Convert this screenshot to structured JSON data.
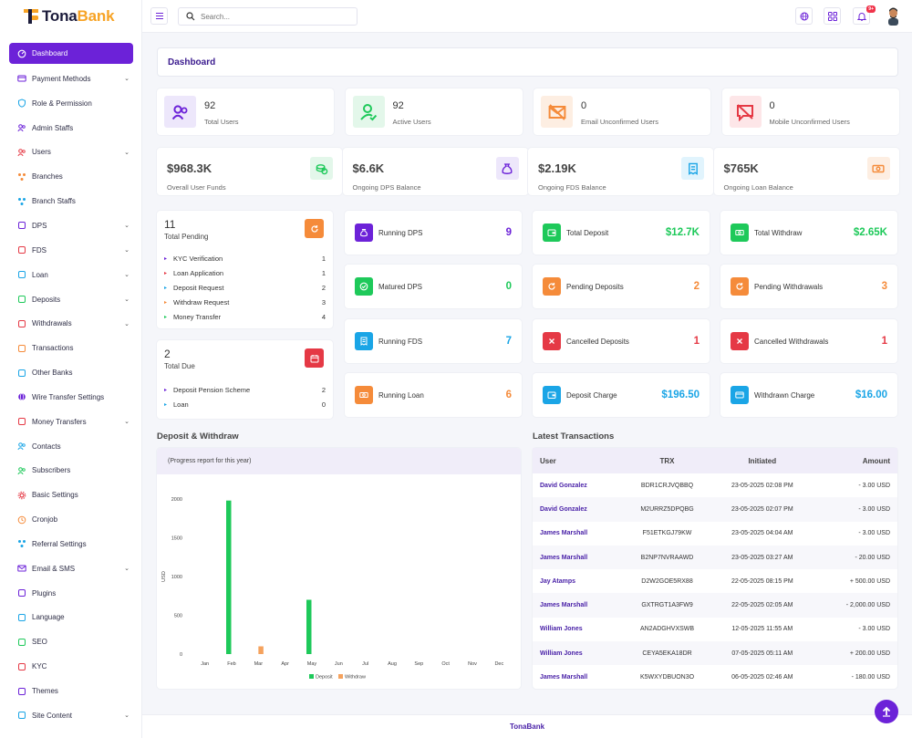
{
  "brand": {
    "part1": "Tona",
    "part2": "Bank"
  },
  "header": {
    "search_placeholder": "Search...",
    "notification_count": "9+"
  },
  "sidebar": {
    "items": [
      {
        "label": "Dashboard",
        "icon": "dashboard-icon",
        "chevron": false,
        "active": true
      },
      {
        "label": "Payment Methods",
        "icon": "card-icon",
        "chevron": true
      },
      {
        "label": "Role & Permission",
        "icon": "shield-icon",
        "chevron": false
      },
      {
        "label": "Admin Staffs",
        "icon": "staff-icon",
        "chevron": false
      },
      {
        "label": "Users",
        "icon": "users-icon",
        "chevron": true
      },
      {
        "label": "Branches",
        "icon": "branches-icon",
        "chevron": false
      },
      {
        "label": "Branch Staffs",
        "icon": "branch-staffs-icon",
        "chevron": false
      },
      {
        "label": "DPS",
        "icon": "dps-icon",
        "chevron": true
      },
      {
        "label": "FDS",
        "icon": "fds-icon",
        "chevron": true
      },
      {
        "label": "Loan",
        "icon": "loan-icon",
        "chevron": true
      },
      {
        "label": "Deposits",
        "icon": "deposits-icon",
        "chevron": true
      },
      {
        "label": "Withdrawals",
        "icon": "withdrawals-icon",
        "chevron": true
      },
      {
        "label": "Transactions",
        "icon": "transactions-icon",
        "chevron": false
      },
      {
        "label": "Other Banks",
        "icon": "bank-icon",
        "chevron": false
      },
      {
        "label": "Wire Transfer Settings",
        "icon": "globe-icon",
        "chevron": false
      },
      {
        "label": "Money Transfers",
        "icon": "transfer-icon",
        "chevron": true
      },
      {
        "label": "Contacts",
        "icon": "contacts-icon",
        "chevron": false
      },
      {
        "label": "Subscribers",
        "icon": "subscribers-icon",
        "chevron": false
      },
      {
        "label": "Basic Settings",
        "icon": "gear-icon",
        "chevron": false
      },
      {
        "label": "Cronjob",
        "icon": "clock-icon",
        "chevron": false
      },
      {
        "label": "Referral Settings",
        "icon": "referral-icon",
        "chevron": false
      },
      {
        "label": "Email & SMS",
        "icon": "mail-icon",
        "chevron": true
      },
      {
        "label": "Plugins",
        "icon": "plugin-icon",
        "chevron": false
      },
      {
        "label": "Language",
        "icon": "language-icon",
        "chevron": false
      },
      {
        "label": "SEO",
        "icon": "seo-icon",
        "chevron": false
      },
      {
        "label": "KYC",
        "icon": "kyc-icon",
        "chevron": false
      },
      {
        "label": "Themes",
        "icon": "themes-icon",
        "chevron": false
      },
      {
        "label": "Site Content",
        "icon": "site-content-icon",
        "chevron": true
      }
    ]
  },
  "page_title": "Dashboard",
  "stats_row1": [
    {
      "value": "92",
      "label": "Total Users",
      "icon": "users-icon",
      "bg": "#ede7fb",
      "color": "#6c22d8"
    },
    {
      "value": "92",
      "label": "Active Users",
      "icon": "user-check-icon",
      "bg": "#e3f7ea",
      "color": "#1ec95a"
    },
    {
      "value": "0",
      "label": "Email Unconfirmed Users",
      "icon": "mail-off-icon",
      "bg": "#fdeee2",
      "color": "#f58b3a"
    },
    {
      "value": "0",
      "label": "Mobile Unconfirmed Users",
      "icon": "message-off-icon",
      "bg": "#fde6e8",
      "color": "#e53945"
    }
  ],
  "stats_row2": [
    {
      "value": "$968.3K",
      "label": "Overall User Funds",
      "icon": "coins-icon",
      "bg": "#e3f7ea",
      "color": "#1ec95a"
    },
    {
      "value": "$6.6K",
      "label": "Ongoing DPS Balance",
      "icon": "money-bag-icon",
      "bg": "#ede7fb",
      "color": "#6c22d8"
    },
    {
      "value": "$2.19K",
      "label": "Ongoing FDS Balance",
      "icon": "receipt-icon",
      "bg": "#e1f4fd",
      "color": "#1aa5e6"
    },
    {
      "value": "$765K",
      "label": "Ongoing Loan Balance",
      "icon": "cash-icon",
      "bg": "#fdeee2",
      "color": "#f58b3a"
    }
  ],
  "pending": {
    "count": "11",
    "title": "Total Pending",
    "items": [
      {
        "label": "KYC Verification",
        "value": "1",
        "color": "#6c22d8"
      },
      {
        "label": "Loan Application",
        "value": "1",
        "color": "#e53945"
      },
      {
        "label": "Deposit Request",
        "value": "2",
        "color": "#1aa5e6"
      },
      {
        "label": "Withdraw Request",
        "value": "3",
        "color": "#f58b3a"
      },
      {
        "label": "Money Transfer",
        "value": "4",
        "color": "#1ec95a"
      }
    ]
  },
  "due": {
    "count": "2",
    "title": "Total Due",
    "items": [
      {
        "label": "Deposit Pension Scheme",
        "value": "2",
        "color": "#6c22d8"
      },
      {
        "label": "Loan",
        "value": "0",
        "color": "#1aa5e6"
      }
    ]
  },
  "mini_cards": [
    {
      "label": "Running DPS",
      "value": "9",
      "icon": "money-bag-icon",
      "color": "#6c22d8"
    },
    {
      "label": "Total Deposit",
      "value": "$12.7K",
      "icon": "wallet-icon",
      "color": "#1ec95a"
    },
    {
      "label": "Total Withdraw",
      "value": "$2.65K",
      "icon": "cash-icon",
      "color": "#1ec95a"
    },
    {
      "label": "Matured DPS",
      "value": "0",
      "icon": "check-circle-icon",
      "color": "#1ec95a"
    },
    {
      "label": "Pending Deposits",
      "value": "2",
      "icon": "refresh-icon",
      "color": "#f58b3a"
    },
    {
      "label": "Pending Withdrawals",
      "value": "3",
      "icon": "refresh-icon",
      "color": "#f58b3a"
    },
    {
      "label": "Running FDS",
      "value": "7",
      "icon": "receipt-icon",
      "color": "#1aa5e6"
    },
    {
      "label": "Cancelled Deposits",
      "value": "1",
      "icon": "close-icon",
      "color": "#e53945"
    },
    {
      "label": "Cancelled Withdrawals",
      "value": "1",
      "icon": "close-icon",
      "color": "#e53945"
    },
    {
      "label": "Running Loan",
      "value": "6",
      "icon": "cash-icon",
      "color": "#f58b3a"
    },
    {
      "label": "Deposit Charge",
      "value": "$196.50",
      "icon": "wallet-icon",
      "color": "#1aa5e6"
    },
    {
      "label": "Withdrawn Charge",
      "value": "$16.00",
      "icon": "card-icon",
      "color": "#1aa5e6"
    }
  ],
  "deposit_withdraw": {
    "title": "Deposit & Withdraw",
    "subtitle": "(Progress report for this year)"
  },
  "chart_data": {
    "type": "bar",
    "categories": [
      "Jan",
      "Feb",
      "Mar",
      "Apr",
      "May",
      "Jun",
      "Jul",
      "Aug",
      "Sep",
      "Oct",
      "Nov",
      "Dec"
    ],
    "series": [
      {
        "name": "Deposit",
        "color": "#1ec95a",
        "values": [
          0,
          1980,
          0,
          0,
          700,
          0,
          0,
          0,
          0,
          0,
          0,
          0
        ]
      },
      {
        "name": "Withdraw",
        "color": "#f5a25d",
        "values": [
          0,
          0,
          100,
          0,
          0,
          0,
          0,
          0,
          0,
          0,
          0,
          0
        ]
      }
    ],
    "ylabel": "USD",
    "ylim": [
      0,
      2000
    ],
    "yticks": [
      "0",
      "500",
      "1000",
      "1500",
      "2000"
    ],
    "legend": "bottom"
  },
  "transactions": {
    "title": "Latest Transactions",
    "columns": [
      "User",
      "TRX",
      "Initiated",
      "Amount"
    ],
    "rows": [
      {
        "user": "David Gonzalez",
        "trx": "BDR1CRJVQBBQ",
        "date": "23-05-2025 02:08 PM",
        "amount": "- 3.00 USD",
        "type": "neg"
      },
      {
        "user": "David Gonzalez",
        "trx": "M2URRZ5DPQBG",
        "date": "23-05-2025 02:07 PM",
        "amount": "- 3.00 USD",
        "type": "neg"
      },
      {
        "user": "James Marshall",
        "trx": "F51ETKGJ79KW",
        "date": "23-05-2025 04:04 AM",
        "amount": "- 3.00 USD",
        "type": "neg"
      },
      {
        "user": "James Marshall",
        "trx": "B2NP7NVRAAWD",
        "date": "23-05-2025 03:27 AM",
        "amount": "- 20.00 USD",
        "type": "neg"
      },
      {
        "user": "Jay Atamps",
        "trx": "D2W2GOE5RX88",
        "date": "22-05-2025 08:15 PM",
        "amount": "+ 500.00 USD",
        "type": "pos"
      },
      {
        "user": "James Marshall",
        "trx": "GXTRGT1A3FW9",
        "date": "22-05-2025 02:05 AM",
        "amount": "- 2,000.00 USD",
        "type": "neg"
      },
      {
        "user": "William Jones",
        "trx": "AN2ADGHVXSWB",
        "date": "12-05-2025 11:55 AM",
        "amount": "- 3.00 USD",
        "type": "neg"
      },
      {
        "user": "William Jones",
        "trx": "CEYA5EKA18DR",
        "date": "07-05-2025 05:11 AM",
        "amount": "+ 200.00 USD",
        "type": "pos"
      },
      {
        "user": "James Marshall",
        "trx": "K5WXYDBUON3O",
        "date": "06-05-2025 02:46 AM",
        "amount": "- 180.00 USD",
        "type": "neg"
      }
    ]
  },
  "footer": "TonaBank"
}
